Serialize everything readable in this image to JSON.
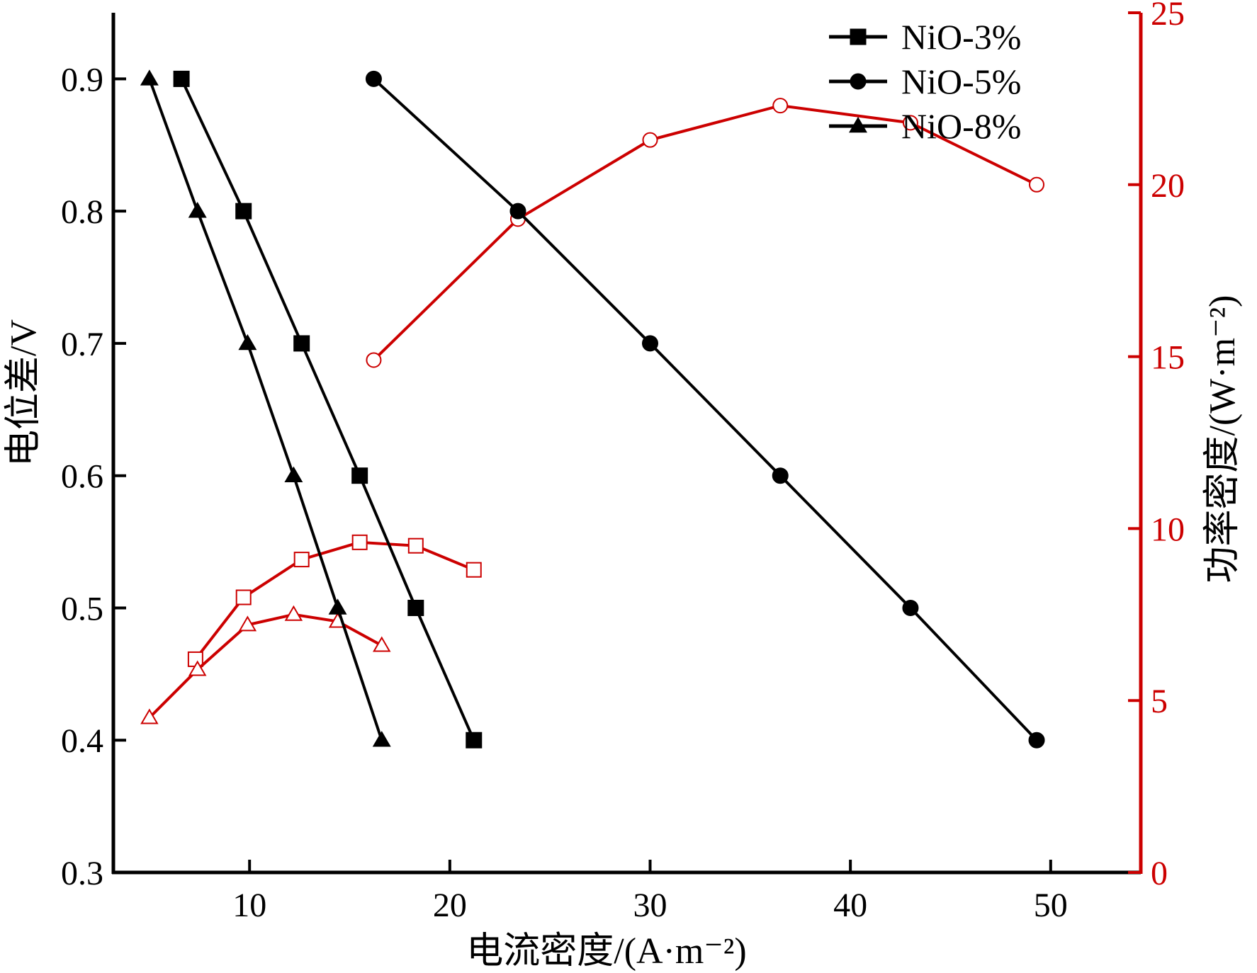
{
  "chart_data": {
    "type": "line",
    "title": "",
    "xlabel": "电流密度/(A·m⁻²)",
    "ylabel_left": "电位差/V",
    "ylabel_right": "功率密度/(W·m⁻²)",
    "xlim": [
      3.2,
      54.5
    ],
    "ylim_left": [
      0.3,
      0.95
    ],
    "ylim_right": [
      0,
      25
    ],
    "x_ticks": [
      10,
      20,
      30,
      40,
      50
    ],
    "y_ticks_left": [
      0.3,
      0.4,
      0.5,
      0.6,
      0.7,
      0.8,
      0.9
    ],
    "y_ticks_right": [
      0,
      5,
      10,
      15,
      20,
      25
    ],
    "x_tick_labels": [
      "10",
      "20",
      "30",
      "40",
      "50"
    ],
    "y_tick_labels_left": [
      "0.3",
      "0.4",
      "0.5",
      "0.6",
      "0.7",
      "0.8",
      "0.9"
    ],
    "y_tick_labels_right": [
      "0",
      "5",
      "10",
      "15",
      "20",
      "25"
    ],
    "legend_position": "top-right",
    "grid": false,
    "colors": {
      "voltage": "#000000",
      "power": "#cc0000"
    },
    "voltage_series": [
      {
        "name": "NiO-3%",
        "marker": "square",
        "x": [
          6.6,
          9.7,
          12.6,
          15.5,
          18.3,
          21.2
        ],
        "y": [
          0.9,
          0.8,
          0.7,
          0.6,
          0.5,
          0.4
        ]
      },
      {
        "name": "NiO-5%",
        "marker": "circle",
        "x": [
          16.2,
          23.4,
          30.0,
          36.5,
          43.0,
          49.3
        ],
        "y": [
          0.9,
          0.8,
          0.7,
          0.6,
          0.5,
          0.4
        ]
      },
      {
        "name": "NiO-8%",
        "marker": "triangle",
        "x": [
          5.0,
          7.4,
          9.9,
          12.2,
          14.4,
          16.6
        ],
        "y": [
          0.9,
          0.8,
          0.7,
          0.6,
          0.5,
          0.4
        ]
      }
    ],
    "power_series": [
      {
        "marker": "square",
        "x": [
          7.3,
          9.7,
          12.6,
          15.5,
          18.3,
          21.2
        ],
        "y": [
          6.2,
          8.0,
          9.1,
          9.6,
          9.5,
          8.8
        ]
      },
      {
        "marker": "circle",
        "x": [
          16.2,
          23.4,
          30.0,
          36.5,
          43.0,
          49.3
        ],
        "y": [
          14.9,
          19.0,
          21.3,
          22.3,
          21.8,
          20.0
        ]
      },
      {
        "marker": "triangle",
        "x": [
          5.0,
          7.4,
          9.9,
          12.2,
          14.4,
          16.6
        ],
        "y": [
          4.5,
          5.9,
          7.2,
          7.5,
          7.3,
          6.6
        ]
      }
    ]
  }
}
